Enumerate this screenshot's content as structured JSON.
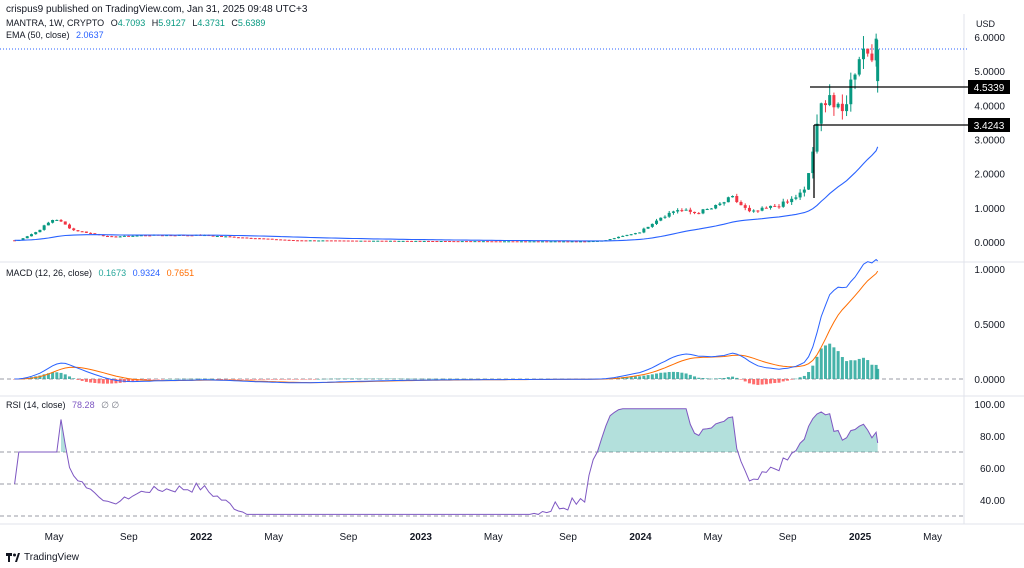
{
  "header": {
    "published": "crispus9 published on TradingView.com, Jan 31, 2025 09:48 UTC+3"
  },
  "legend": {
    "symbol": "MANTRA, 1W, CRYPTO",
    "o_label": "O",
    "o_value": "4.7093",
    "h_label": "H",
    "h_value": "5.9127",
    "l_label": "L",
    "l_value": "4.3731",
    "c_label": "C",
    "c_value": "5.6389",
    "ema_label": "EMA (50, close)",
    "ema_value": "2.0637",
    "macd_label": "MACD (12, 26, close)",
    "macd_v1": "0.1673",
    "macd_v2": "0.9324",
    "macd_v3": "0.7651",
    "rsi_label": "RSI (14, close)",
    "rsi_value": "78.28",
    "rsi_extra": "∅ ∅"
  },
  "currency": "USD",
  "price_axis": [
    "6.0000",
    "5.0000",
    "4.0000",
    "3.0000",
    "2.0000",
    "1.0000",
    "0.0000"
  ],
  "levels": {
    "upper": "4.5339",
    "lower": "3.4243"
  },
  "macd_axis": [
    "1.0000",
    "0.5000",
    "0.0000"
  ],
  "rsi_axis": [
    "100.00",
    "80.00",
    "60.00",
    "40.00"
  ],
  "time_axis": [
    {
      "label": "May",
      "bold": false
    },
    {
      "label": "Sep",
      "bold": false
    },
    {
      "label": "2022",
      "bold": true
    },
    {
      "label": "May",
      "bold": false
    },
    {
      "label": "Sep",
      "bold": false
    },
    {
      "label": "2023",
      "bold": true
    },
    {
      "label": "May",
      "bold": false
    },
    {
      "label": "Sep",
      "bold": false
    },
    {
      "label": "2024",
      "bold": true
    },
    {
      "label": "May",
      "bold": false
    },
    {
      "label": "Sep",
      "bold": false
    },
    {
      "label": "2025",
      "bold": true
    },
    {
      "label": "May",
      "bold": false
    }
  ],
  "footer": {
    "brand": "TradingView"
  },
  "colors": {
    "up": "#089981",
    "down": "#f23645",
    "impulse": "#2962ff",
    "ema": "#2962ff",
    "macd": "#2962ff",
    "signal": "#ff6d00",
    "rsi": "#7e57c2",
    "hist_pos": "#26a69a",
    "hist_pos_light": "#b2dfdb",
    "hist_neg": "#ff5252",
    "hist_neg_light": "#ffcdd2"
  },
  "chart_data": [
    {
      "type": "candlestick",
      "title": "MANTRA, 1W, CRYPTO",
      "ylim": [
        0,
        6
      ],
      "price_anchors": {
        "x": [
          "2021-03",
          "2021-04",
          "2021-05",
          "2021-06",
          "2021-08",
          "2021-10",
          "2022-01",
          "2022-06",
          "2023-01",
          "2023-06",
          "2023-10",
          "2023-11",
          "2024-01",
          "2024-02",
          "2024-03",
          "2024-04",
          "2024-05",
          "2024-06",
          "2024-07",
          "2024-08",
          "2024-09",
          "2024-10",
          "2024-11",
          "2024-12",
          "2025-01"
        ],
        "close": [
          0.05,
          0.3,
          0.7,
          0.35,
          0.15,
          0.2,
          0.2,
          0.05,
          0.03,
          0.02,
          0.02,
          0.04,
          0.3,
          0.7,
          0.95,
          0.85,
          1.0,
          1.3,
          0.85,
          1.0,
          1.15,
          1.5,
          4.3,
          3.7,
          5.64
        ]
      },
      "ema50": {
        "label": "EMA (50, close)",
        "last": 2.0637
      },
      "horizontal_levels": [
        4.5339,
        3.4243
      ],
      "last_candle": {
        "open": 4.7093,
        "high": 5.9127,
        "low": 4.3731,
        "close": 5.6389
      }
    },
    {
      "type": "line",
      "title": "MACD (12, 26, close)",
      "ylim": [
        -0.1,
        1.0
      ],
      "series": [
        {
          "name": "MACD",
          "last": 0.9324
        },
        {
          "name": "Signal",
          "last": 0.7651
        }
      ],
      "histogram_last": 0.1673
    },
    {
      "type": "line",
      "title": "RSI (14, close)",
      "ylim": [
        30,
        100
      ],
      "last": 78.28,
      "bands": [
        70,
        50,
        30
      ]
    }
  ]
}
